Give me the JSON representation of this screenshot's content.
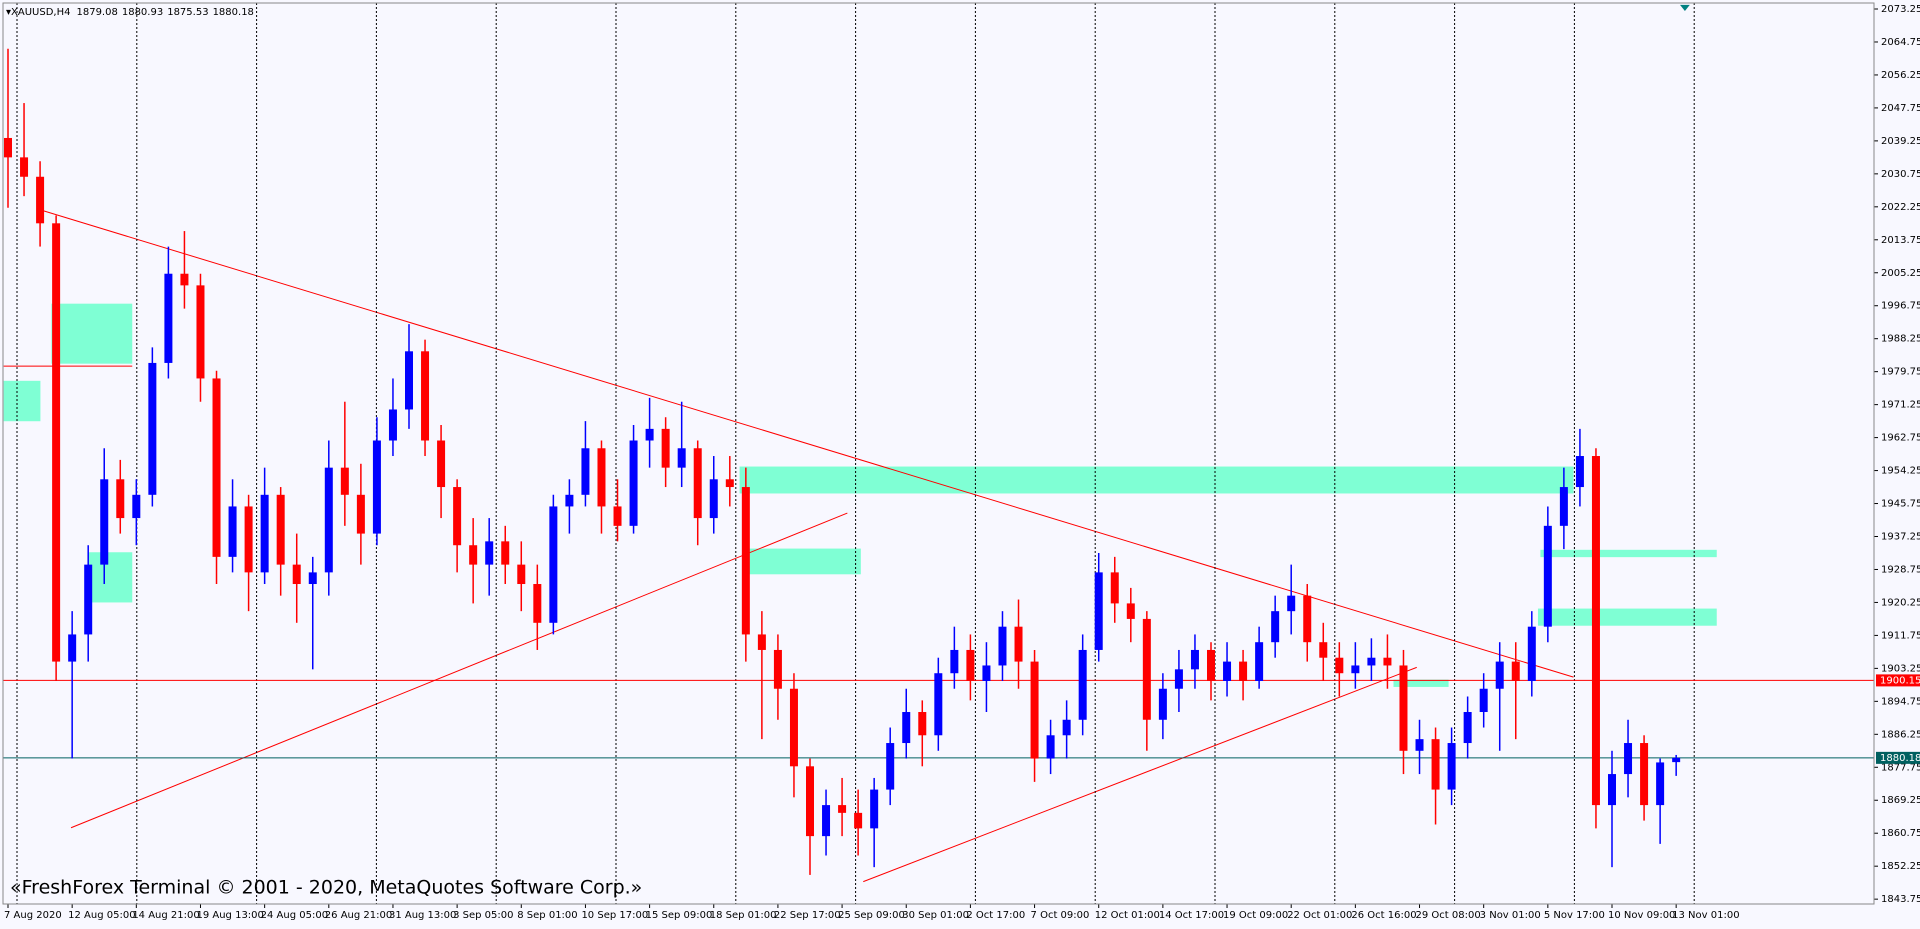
{
  "chart_data": {
    "type": "candlestick",
    "symbol": "XAUUSD,H4",
    "watermark": "«FreshForex Terminal © 2001 - 2020, MetaQuotes Software Corp.»",
    "categories": [
      "7 Aug 2020",
      null,
      null,
      null,
      "12 Aug 05:00",
      null,
      null,
      null,
      "14 Aug 21:00",
      null,
      null,
      null,
      "19 Aug 13:00",
      null,
      null,
      null,
      "24 Aug 05:00",
      null,
      null,
      null,
      "26 Aug 21:00",
      null,
      null,
      null,
      "31 Aug 13:00",
      null,
      null,
      null,
      "3 Sep 05:00",
      null,
      null,
      null,
      "8 Sep 01:00",
      null,
      null,
      null,
      "10 Sep 17:00",
      null,
      null,
      null,
      "15 Sep 09:00",
      null,
      null,
      null,
      "18 Sep 01:00",
      null,
      null,
      null,
      "22 Sep 17:00",
      null,
      null,
      null,
      "25 Sep 09:00",
      null,
      null,
      null,
      "30 Sep 01:00",
      null,
      null,
      null,
      "2 Oct 17:00",
      null,
      null,
      null,
      "7 Oct 09:00",
      null,
      null,
      null,
      "12 Oct 01:00",
      null,
      null,
      null,
      "14 Oct 17:00",
      null,
      null,
      null,
      "19 Oct 09:00",
      null,
      null,
      null,
      "22 Oct 01:00",
      null,
      null,
      null,
      "26 Oct 16:00",
      null,
      null,
      null,
      "29 Oct 08:00",
      null,
      null,
      null,
      "3 Nov 01:00",
      null,
      null,
      null,
      "5 Nov 17:00",
      null,
      null,
      null,
      "10 Nov 09:00",
      null,
      null,
      null,
      "13 Nov 01:00"
    ],
    "open": [
      2040,
      2035,
      2030,
      2018,
      1905,
      1912,
      1930,
      1952,
      1942,
      1948,
      1982,
      2005,
      2002,
      1978,
      1932,
      1945,
      1928,
      1948,
      1930,
      1925,
      1928,
      1955,
      1948,
      1938,
      1962,
      1970,
      1985,
      1962,
      1950,
      1935,
      1930,
      1936,
      1930,
      1925,
      1915,
      1945,
      1948,
      1960,
      1945,
      1940,
      1962,
      1965,
      1955,
      1960,
      1942,
      1952,
      1950,
      1912,
      1908,
      1898,
      1878,
      1860,
      1868,
      1866,
      1862,
      1872,
      1884,
      1892,
      1886,
      1902,
      1908,
      1900,
      1904,
      1914,
      1905,
      1880,
      1886,
      1890,
      1908,
      1928,
      1920,
      1916,
      1890,
      1898,
      1903,
      1908,
      1900,
      1905,
      1900,
      1910,
      1918,
      1922,
      1910,
      1906,
      1902,
      1904,
      1906,
      1904,
      1882,
      1885,
      1872,
      1884,
      1892,
      1898,
      1905,
      1900,
      1914,
      1940,
      1950,
      1958,
      1868,
      1876,
      1884,
      1868,
      1879.08
    ],
    "high": [
      2063,
      2049,
      2034,
      2020,
      1918,
      1935,
      1960,
      1957,
      1952,
      1986,
      2012,
      2016,
      2005,
      1980,
      1952,
      1948,
      1955,
      1950,
      1938,
      1932,
      1962,
      1972,
      1956,
      1968,
      1978,
      1992,
      1988,
      1966,
      1952,
      1942,
      1942,
      1940,
      1936,
      1930,
      1948,
      1952,
      1967,
      1962,
      1952,
      1966,
      1973,
      1968,
      1972,
      1962,
      1958,
      1958,
      1955,
      1918,
      1912,
      1902,
      1880,
      1872,
      1875,
      1872,
      1875,
      1888,
      1898,
      1895,
      1906,
      1914,
      1912,
      1910,
      1918,
      1921,
      1908,
      1890,
      1895,
      1912,
      1933,
      1932,
      1924,
      1918,
      1902,
      1908,
      1912,
      1910,
      1910,
      1908,
      1914,
      1922,
      1930,
      1925,
      1915,
      1910,
      1910,
      1911,
      1912,
      1908,
      1890,
      1888,
      1888,
      1896,
      1902,
      1910,
      1910,
      1918,
      1945,
      1955,
      1965,
      1960,
      1882,
      1890,
      1886,
      1880,
      1880.93
    ],
    "low": [
      2022,
      2025,
      2012,
      1900,
      1880,
      1905,
      1925,
      1938,
      1935,
      1945,
      1978,
      1996,
      1972,
      1925,
      1928,
      1918,
      1925,
      1922,
      1915,
      1903,
      1922,
      1940,
      1930,
      1935,
      1958,
      1965,
      1958,
      1942,
      1928,
      1920,
      1922,
      1925,
      1918,
      1908,
      1912,
      1938,
      1945,
      1938,
      1936,
      1938,
      1955,
      1950,
      1950,
      1935,
      1938,
      1945,
      1905,
      1885,
      1890,
      1870,
      1850,
      1855,
      1860,
      1855,
      1852,
      1868,
      1880,
      1878,
      1882,
      1898,
      1895,
      1892,
      1900,
      1898,
      1874,
      1876,
      1880,
      1886,
      1905,
      1915,
      1910,
      1882,
      1885,
      1892,
      1898,
      1895,
      1896,
      1895,
      1898,
      1906,
      1912,
      1905,
      1900,
      1896,
      1898,
      1900,
      1898,
      1876,
      1876,
      1863,
      1868,
      1880,
      1888,
      1882,
      1885,
      1896,
      1910,
      1934,
      1945,
      1862,
      1852,
      1870,
      1864,
      1858,
      1875.53
    ],
    "close": [
      2035,
      2030,
      2018,
      1905,
      1912,
      1930,
      1952,
      1942,
      1948,
      1982,
      2005,
      2002,
      1978,
      1932,
      1945,
      1928,
      1948,
      1930,
      1925,
      1928,
      1955,
      1948,
      1938,
      1962,
      1970,
      1985,
      1962,
      1950,
      1935,
      1930,
      1936,
      1930,
      1925,
      1915,
      1945,
      1948,
      1960,
      1945,
      1940,
      1962,
      1965,
      1955,
      1960,
      1942,
      1952,
      1950,
      1912,
      1908,
      1898,
      1878,
      1860,
      1868,
      1866,
      1862,
      1872,
      1884,
      1892,
      1886,
      1902,
      1908,
      1900,
      1904,
      1914,
      1905,
      1880,
      1886,
      1890,
      1908,
      1928,
      1920,
      1916,
      1890,
      1898,
      1903,
      1908,
      1900,
      1905,
      1900,
      1910,
      1918,
      1922,
      1910,
      1906,
      1902,
      1904,
      1906,
      1904,
      1882,
      1885,
      1872,
      1884,
      1892,
      1898,
      1905,
      1900,
      1914,
      1940,
      1950,
      1958,
      1868,
      1876,
      1884,
      1868,
      1879,
      1880.18
    ],
    "up_color": "#0000ff",
    "down_color": "#ff0000",
    "ylim": [
      1842.5,
      2074.8
    ],
    "yticks": [
      2073.25,
      2064.75,
      2056.25,
      2047.75,
      2039.25,
      2030.75,
      2022.25,
      2013.75,
      2005.25,
      1996.75,
      1988.25,
      1979.75,
      1971.25,
      1962.75,
      1954.25,
      1945.75,
      1937.25,
      1928.75,
      1920.25,
      1911.75,
      1903.25,
      1894.75,
      1886.25,
      1877.75,
      1869.25,
      1860.75,
      1852.25,
      1843.75
    ],
    "hlines": [
      {
        "value": 1900.15,
        "color": "#ff0000"
      },
      {
        "value": 1880.18,
        "color": "#006060"
      }
    ]
  }
}
